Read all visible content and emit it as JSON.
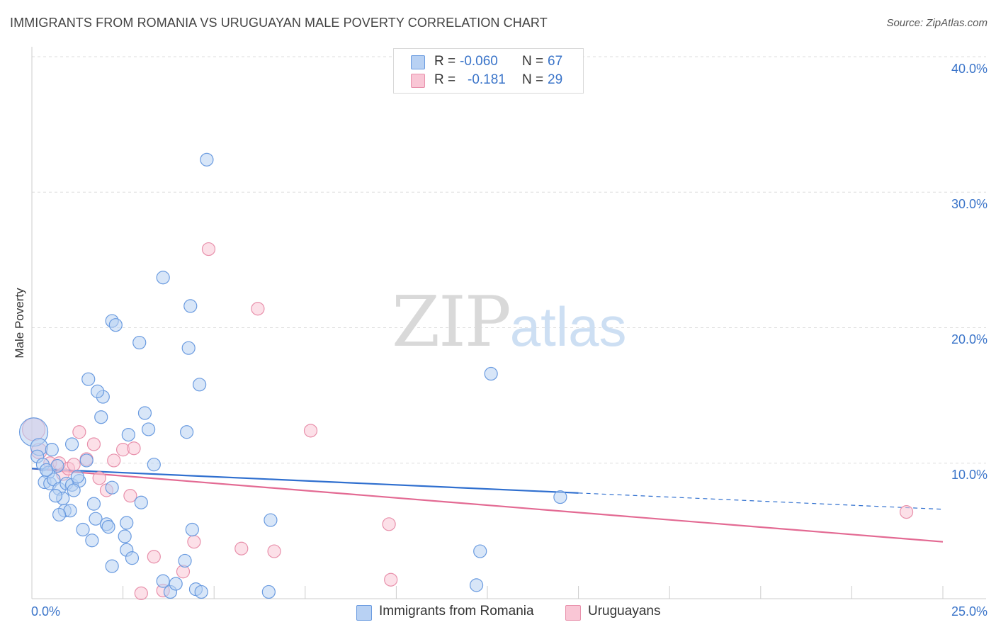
{
  "header": {
    "title": "IMMIGRANTS FROM ROMANIA VS URUGUAYAN MALE POVERTY CORRELATION CHART",
    "source": "Source: ZipAtlas.com"
  },
  "watermark": {
    "part1": "ZIP",
    "part2": "atlas"
  },
  "legend": {
    "rows": [
      {
        "r_label": "R =",
        "r_value": "-0.060",
        "n_label": "N =",
        "n_value": "67",
        "color": "#aac8f0"
      },
      {
        "r_label": "R =",
        "r_value": "-0.181",
        "n_label": "N =",
        "n_value": "29",
        "color": "#f7b8cb"
      }
    ]
  },
  "bottom_legend": {
    "items": [
      {
        "label": "Immigrants from Romania",
        "color": "#aac8f0"
      },
      {
        "label": "Uruguayans",
        "color": "#f7b8cb"
      }
    ]
  },
  "colors": {
    "blue_fill": "#b8d1f3",
    "blue_stroke": "#6a9be0",
    "blue_line": "#2f6fcf",
    "pink_fill": "#f9c6d5",
    "pink_stroke": "#e890ab",
    "pink_line": "#e36a93",
    "grid": "#dddddd",
    "axis_text": "#3a74c9"
  },
  "chart_data": {
    "type": "scatter",
    "title": "IMMIGRANTS FROM ROMANIA VS URUGUAYAN MALE POVERTY CORRELATION CHART",
    "xlabel": "",
    "ylabel": "Male Poverty",
    "xlim": [
      0,
      25
    ],
    "ylim": [
      0,
      40
    ],
    "x_tick_labels": [
      "0.0%",
      "25.0%"
    ],
    "y_ticks": [
      10,
      20,
      30,
      40
    ],
    "y_tick_labels": [
      "10.0%",
      "20.0%",
      "30.0%",
      "40.0%"
    ],
    "grid": true,
    "series": [
      {
        "name": "Immigrants from Romania",
        "r": -0.06,
        "n": 67,
        "trend": {
          "x0": 0,
          "y0": 9.6,
          "x1": 15,
          "y1": 7.8,
          "dash_to_x": 25,
          "dash_to_y": 6.6
        },
        "points": [
          [
            0.05,
            12.3,
            20
          ],
          [
            0.2,
            11.2,
            12
          ],
          [
            0.15,
            10.5,
            9
          ],
          [
            0.3,
            9.9,
            9
          ],
          [
            0.45,
            9.3,
            9
          ],
          [
            0.35,
            8.6,
            9
          ],
          [
            0.5,
            8.5,
            9
          ],
          [
            0.6,
            8.8,
            9
          ],
          [
            0.7,
            9.8,
            9
          ],
          [
            0.55,
            11.0,
            9
          ],
          [
            0.75,
            8.1,
            9
          ],
          [
            0.85,
            7.4,
            9
          ],
          [
            0.65,
            7.6,
            9
          ],
          [
            0.95,
            8.5,
            9
          ],
          [
            1.1,
            8.4,
            9
          ],
          [
            1.3,
            8.7,
            9
          ],
          [
            1.25,
            9.0,
            9
          ],
          [
            1.5,
            10.2,
            9
          ],
          [
            1.15,
            8.0,
            9
          ],
          [
            0.9,
            6.5,
            9
          ],
          [
            1.05,
            6.5,
            9
          ],
          [
            0.75,
            6.2,
            9
          ],
          [
            1.7,
            7.0,
            9
          ],
          [
            1.75,
            5.9,
            9
          ],
          [
            1.4,
            5.1,
            9
          ],
          [
            2.05,
            5.5,
            9
          ],
          [
            2.1,
            5.3,
            9
          ],
          [
            1.65,
            4.3,
            9
          ],
          [
            2.55,
            4.6,
            9
          ],
          [
            2.6,
            5.6,
            9
          ],
          [
            2.6,
            3.6,
            9
          ],
          [
            2.75,
            3.0,
            9
          ],
          [
            2.2,
            2.4,
            9
          ],
          [
            3.0,
            7.1,
            9
          ],
          [
            2.2,
            8.2,
            9
          ],
          [
            2.65,
            12.1,
            9
          ],
          [
            3.1,
            13.7,
            9
          ],
          [
            3.2,
            12.5,
            9
          ],
          [
            3.35,
            9.9,
            9
          ],
          [
            1.95,
            14.9,
            9
          ],
          [
            1.9,
            13.4,
            9
          ],
          [
            1.8,
            15.3,
            9
          ],
          [
            1.55,
            16.2,
            9
          ],
          [
            2.2,
            20.5,
            9
          ],
          [
            2.3,
            20.2,
            9
          ],
          [
            2.95,
            18.9,
            9
          ],
          [
            3.6,
            23.7,
            9
          ],
          [
            4.35,
            21.6,
            9
          ],
          [
            4.3,
            18.5,
            9
          ],
          [
            4.6,
            15.8,
            9
          ],
          [
            4.25,
            12.3,
            9
          ],
          [
            4.8,
            32.4,
            9
          ],
          [
            4.4,
            5.1,
            9
          ],
          [
            4.2,
            2.8,
            9
          ],
          [
            3.6,
            1.3,
            9
          ],
          [
            3.8,
            0.5,
            9
          ],
          [
            3.95,
            1.1,
            9
          ],
          [
            4.5,
            0.7,
            9
          ],
          [
            4.65,
            0.5,
            9
          ],
          [
            6.5,
            0.5,
            9
          ],
          [
            6.55,
            5.8,
            9
          ],
          [
            12.6,
            16.6,
            9
          ],
          [
            12.3,
            3.5,
            9
          ],
          [
            12.2,
            1.0,
            9
          ],
          [
            14.5,
            7.5,
            9
          ],
          [
            1.1,
            11.4,
            9
          ],
          [
            0.4,
            9.5,
            9
          ]
        ]
      },
      {
        "name": "Uruguayans",
        "r": -0.181,
        "n": 29,
        "trend": {
          "x0": 0,
          "y0": 9.6,
          "x1": 25,
          "y1": 4.2
        },
        "points": [
          [
            0.05,
            12.5,
            16
          ],
          [
            0.2,
            10.9,
            11
          ],
          [
            0.5,
            10.0,
            9
          ],
          [
            0.75,
            10.0,
            9
          ],
          [
            0.85,
            9.2,
            9
          ],
          [
            1.0,
            9.6,
            9
          ],
          [
            1.15,
            9.9,
            9
          ],
          [
            1.3,
            12.3,
            9
          ],
          [
            1.5,
            10.3,
            9
          ],
          [
            1.7,
            11.4,
            9
          ],
          [
            1.85,
            8.9,
            9
          ],
          [
            2.05,
            8.0,
            9
          ],
          [
            2.25,
            10.2,
            9
          ],
          [
            2.5,
            11.0,
            9
          ],
          [
            2.8,
            11.1,
            9
          ],
          [
            2.7,
            7.6,
            9
          ],
          [
            4.85,
            25.8,
            9
          ],
          [
            6.2,
            21.4,
            9
          ],
          [
            7.65,
            12.4,
            9
          ],
          [
            3.35,
            3.1,
            9
          ],
          [
            3.6,
            0.6,
            9
          ],
          [
            4.15,
            2.0,
            9
          ],
          [
            4.45,
            4.2,
            9
          ],
          [
            5.75,
            3.7,
            9
          ],
          [
            6.65,
            3.5,
            9
          ],
          [
            9.8,
            5.5,
            9
          ],
          [
            9.85,
            1.4,
            9
          ],
          [
            24.0,
            6.4,
            9
          ],
          [
            3.0,
            0.4,
            9
          ]
        ]
      }
    ]
  }
}
